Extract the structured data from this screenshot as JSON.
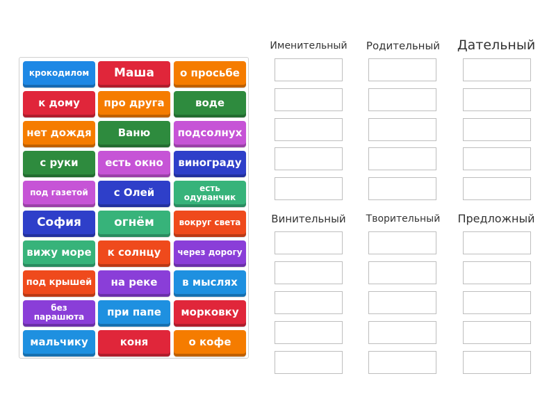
{
  "tiles": [
    {
      "label": "крокодилом",
      "color": "#1e88e5"
    },
    {
      "label": "Маша",
      "color": "#e0263a"
    },
    {
      "label": "о просьбе",
      "color": "#f57c00"
    },
    {
      "label": "к дому",
      "color": "#e0263a"
    },
    {
      "label": "про друга",
      "color": "#f57c00"
    },
    {
      "label": "воде",
      "color": "#2e8b3e"
    },
    {
      "label": "нет дождя",
      "color": "#f57c00"
    },
    {
      "label": "Ваню",
      "color": "#2e8b3e"
    },
    {
      "label": "подсолнух",
      "color": "#c654d6"
    },
    {
      "label": "с руки",
      "color": "#2e8b3e"
    },
    {
      "label": "есть окно",
      "color": "#c654d6"
    },
    {
      "label": "винограду",
      "color": "#2e3fc9"
    },
    {
      "label": "под газетой",
      "color": "#c654d6"
    },
    {
      "label": "с Олей",
      "color": "#2e3fc9"
    },
    {
      "label": "есть одуванчик",
      "color": "#37b37a"
    },
    {
      "label": "София",
      "color": "#2e3fc9"
    },
    {
      "label": "огнём",
      "color": "#37b37a"
    },
    {
      "label": "вокруг света",
      "color": "#ef4a1c"
    },
    {
      "label": "вижу море",
      "color": "#37b37a"
    },
    {
      "label": "к солнцу",
      "color": "#ef4a1c"
    },
    {
      "label": "через дорогу",
      "color": "#8a3ed8"
    },
    {
      "label": "под крышей",
      "color": "#ef4a1c"
    },
    {
      "label": "на реке",
      "color": "#8a3ed8"
    },
    {
      "label": "в мыслях",
      "color": "#1e90e0"
    },
    {
      "label": "без парашюта",
      "color": "#8a3ed8"
    },
    {
      "label": "при папе",
      "color": "#1e90e0"
    },
    {
      "label": "морковку",
      "color": "#e0263a"
    },
    {
      "label": "мальчику",
      "color": "#1e90e0"
    },
    {
      "label": "коня",
      "color": "#e0263a"
    },
    {
      "label": "о кофе",
      "color": "#f57c00"
    }
  ],
  "categories": [
    {
      "title": "Именительный"
    },
    {
      "title": "Родительный"
    },
    {
      "title": "Дательный"
    },
    {
      "title": "Винительный"
    },
    {
      "title": "Творительный"
    },
    {
      "title": "Предложный"
    }
  ]
}
